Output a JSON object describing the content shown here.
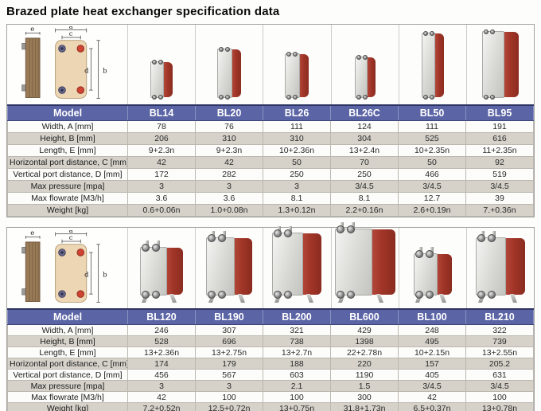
{
  "page_title": "Brazed plate heat exchanger specification data",
  "diagram": {
    "labels": {
      "a": "a",
      "b": "b",
      "c": "c",
      "d": "d",
      "e": "e"
    }
  },
  "colors": {
    "header_bg": "#5b64a5",
    "header_text": "#ffffff",
    "row_stripe": "#d6d2ca",
    "unit_side_red": "#a03527",
    "unit_face_steel": "#d8d8d4",
    "diagram_plate_tan": "#ecd6b4",
    "port_red": "#cd4433",
    "port_blue": "#6a6a8e"
  },
  "tables": [
    {
      "header_label": "Model",
      "models": [
        "BL14",
        "BL20",
        "BL26",
        "BL26C",
        "BL50",
        "BL95"
      ],
      "rows": [
        {
          "label": "Width, A [mm]",
          "values": [
            "78",
            "76",
            "111",
            "124",
            "111",
            "191"
          ]
        },
        {
          "label": "Height, B [mm]",
          "values": [
            "206",
            "310",
            "310",
            "304",
            "525",
            "616"
          ]
        },
        {
          "label": "Length, E [mm]",
          "values": [
            "9+2.3n",
            "9+2.3n",
            "10+2.36n",
            "13+2.4n",
            "10+2.35n",
            "11+2.35n"
          ]
        },
        {
          "label": "Horizontal port distance, C [mm]",
          "values": [
            "42",
            "42",
            "50",
            "70",
            "50",
            "92"
          ]
        },
        {
          "label": "Vertical port distance, D [mm]",
          "values": [
            "172",
            "282",
            "250",
            "250",
            "466",
            "519"
          ]
        },
        {
          "label": "Max pressure [mpa]",
          "values": [
            "3",
            "3",
            "3",
            "3/4.5",
            "3/4.5",
            "3/4.5"
          ]
        },
        {
          "label": "Max flowrate [M3/h]",
          "values": [
            "3.6",
            "3.6",
            "8.1",
            "8.1",
            "12.7",
            "39"
          ]
        },
        {
          "label": "Weight [kg]",
          "values": [
            "0.6+0.06n",
            "1.0+0.08n",
            "1.3+0.12n",
            "2.2+0.16n",
            "2.6+0.19n",
            "7.+0.36n"
          ]
        }
      ],
      "photos": [
        {
          "w": 28,
          "h": 46,
          "legs": false
        },
        {
          "w": 30,
          "h": 62,
          "legs": false
        },
        {
          "w": 30,
          "h": 56,
          "legs": false
        },
        {
          "w": 26,
          "h": 52,
          "legs": false
        },
        {
          "w": 28,
          "h": 82,
          "legs": false
        },
        {
          "w": 46,
          "h": 84,
          "legs": false
        }
      ]
    },
    {
      "header_label": "Model",
      "models": [
        "BL120",
        "BL190",
        "BL200",
        "BL600",
        "BL100",
        "BL210"
      ],
      "rows": [
        {
          "label": "Width, A [mm]",
          "values": [
            "246",
            "307",
            "321",
            "429",
            "248",
            "322"
          ]
        },
        {
          "label": "Height, B [mm]",
          "values": [
            "528",
            "696",
            "738",
            "1398",
            "495",
            "739"
          ]
        },
        {
          "label": "Length, E [mm]",
          "values": [
            "13+2.36n",
            "13+2.75n",
            "13+2.7n",
            "22+2.78n",
            "10+2.15n",
            "13+2.55n"
          ]
        },
        {
          "label": "Horizontal port distance, C [mm]",
          "values": [
            "174",
            "179",
            "188",
            "220",
            "157",
            "205.2"
          ]
        },
        {
          "label": "Vertical port distance, D [mm]",
          "values": [
            "456",
            "567",
            "603",
            "1190",
            "405",
            "631"
          ]
        },
        {
          "label": "Max pressure [mpa]",
          "values": [
            "3",
            "3",
            "2.1",
            "1.5",
            "3/4.5",
            "3/4.5"
          ]
        },
        {
          "label": "Max flowrate [M3/h]",
          "values": [
            "42",
            "100",
            "100",
            "300",
            "42",
            "100"
          ]
        },
        {
          "label": "Weight [kg]",
          "values": [
            "7.2+0.52n",
            "12.5+0.72n",
            "13+0.75n",
            "31.8+1.73n",
            "6.5+0.37n",
            "13+0.78n"
          ]
        }
      ],
      "photos": [
        {
          "w": 54,
          "h": 74,
          "legs": true
        },
        {
          "w": 58,
          "h": 86,
          "legs": true
        },
        {
          "w": 62,
          "h": 92,
          "legs": true
        },
        {
          "w": 76,
          "h": 97,
          "legs": true
        },
        {
          "w": 48,
          "h": 66,
          "legs": true
        },
        {
          "w": 62,
          "h": 86,
          "legs": true
        }
      ]
    }
  ]
}
